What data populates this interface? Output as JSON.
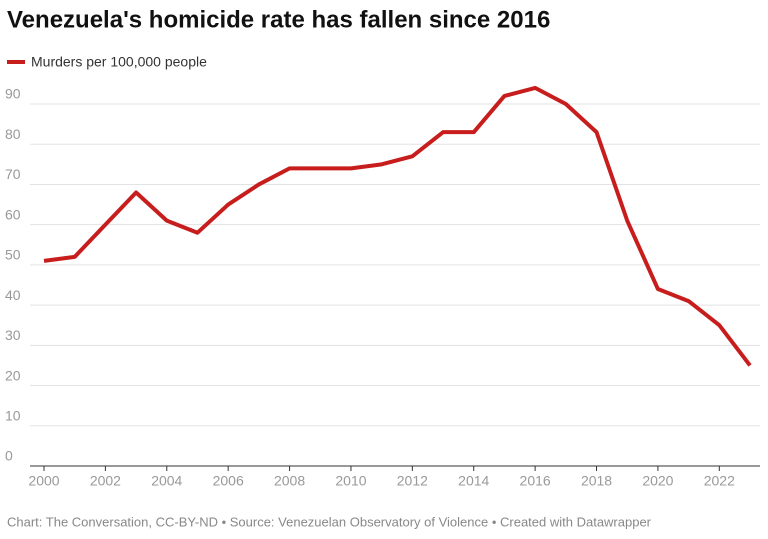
{
  "chart_data": {
    "type": "line",
    "title": "Venezuela's homicide rate has fallen since 2016",
    "footer": "Chart: The Conversation, CC-BY-ND • Source: Venezuelan Observatory of Violence • Created with Datawrapper",
    "x": [
      2000,
      2001,
      2002,
      2003,
      2004,
      2005,
      2006,
      2007,
      2008,
      2009,
      2010,
      2011,
      2012,
      2013,
      2014,
      2015,
      2016,
      2017,
      2018,
      2019,
      2020,
      2021,
      2022,
      2023
    ],
    "series": [
      {
        "name": "Murders per 100,000 people",
        "color": "#c71e1d",
        "values": [
          51,
          52,
          60,
          68,
          61,
          58,
          65,
          70,
          74,
          74,
          74,
          75,
          77,
          83,
          83,
          92,
          94,
          90,
          83,
          61,
          44,
          41,
          35,
          25
        ]
      }
    ],
    "xlim": [
      2000,
      2023
    ],
    "xticks": [
      2000,
      2002,
      2004,
      2006,
      2008,
      2010,
      2012,
      2014,
      2016,
      2018,
      2020,
      2022
    ],
    "ylim": [
      0,
      90
    ],
    "yticks": [
      0,
      10,
      20,
      30,
      40,
      50,
      60,
      70,
      80,
      90
    ],
    "grid": true
  }
}
